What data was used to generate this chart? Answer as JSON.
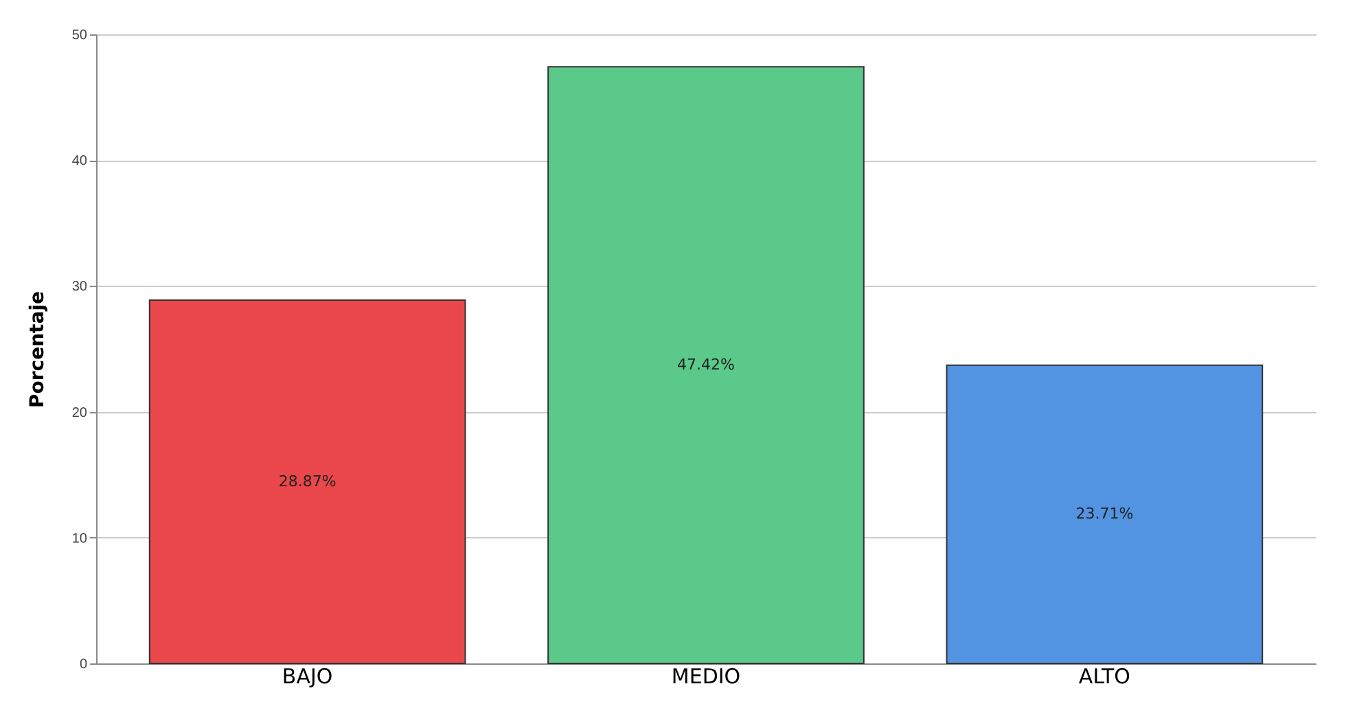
{
  "chart_data": {
    "type": "bar",
    "ylabel": "Porcentaje",
    "categories": [
      "BAJO",
      "MEDIO",
      "ALTO"
    ],
    "values": [
      28.87,
      47.42,
      23.71
    ],
    "colors": [
      "#e9474a",
      "#5ac98a",
      "#5293e2"
    ],
    "value_labels": [
      "28.87%",
      "47.42%",
      "23.71%"
    ],
    "ylim": [
      0,
      50
    ],
    "yticks": [
      0,
      10,
      20,
      30,
      40,
      50
    ],
    "grid": "y"
  }
}
